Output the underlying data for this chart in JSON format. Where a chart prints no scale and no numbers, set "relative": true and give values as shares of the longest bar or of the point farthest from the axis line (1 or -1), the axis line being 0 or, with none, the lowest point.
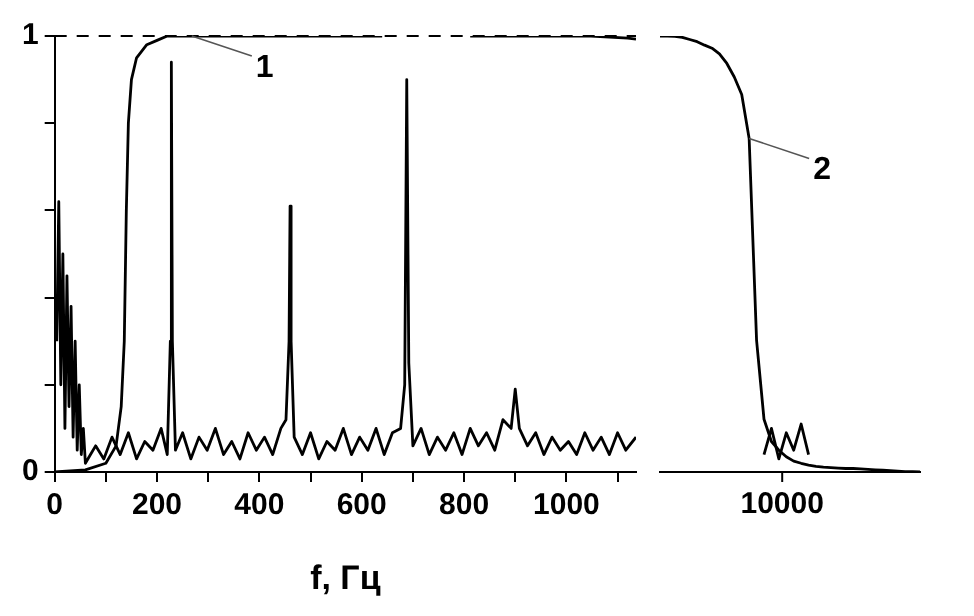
{
  "chart_data": [
    {
      "type": "line",
      "xlabel": "f, Гц",
      "xlim": [
        0,
        1136
      ],
      "ylim": [
        0,
        1
      ],
      "xticks": [
        0,
        {
          "value": 100,
          "label": null
        },
        200,
        {
          "value": 300,
          "label": null
        },
        400,
        {
          "value": 500,
          "label": null
        },
        600,
        {
          "value": 700,
          "label": null
        },
        800,
        {
          "value": 900,
          "label": null
        },
        1000,
        {
          "value": 1100,
          "label": null
        }
      ],
      "yticks": [
        0,
        {
          "value": 0.2,
          "label": null
        },
        {
          "value": 0.4,
          "label": null
        },
        {
          "value": 0.6,
          "label": null
        },
        {
          "value": 0.8,
          "label": null
        },
        1
      ],
      "grid": false,
      "legend": false,
      "marker": "none",
      "line_style": "solid",
      "ref_lines": [
        {
          "axis": "y",
          "value": 1,
          "line_style": "dashed",
          "color": "#000000"
        }
      ],
      "annotations": [
        {
          "text": "1",
          "x": 268,
          "y": 1
        }
      ],
      "series": [
        {
          "color": "#000000",
          "x": [
            4,
            8,
            12,
            16,
            20,
            24,
            28,
            32,
            36,
            40,
            44,
            48,
            52,
            56,
            60,
            70,
            80,
            96,
            112,
            128,
            144,
            160,
            176,
            192,
            208,
            220,
            226,
            228,
            230,
            236,
            250,
            266,
            282,
            298,
            314,
            330,
            346,
            362,
            378,
            394,
            410,
            426,
            442,
            452,
            458,
            460,
            462,
            468,
            484,
            500,
            516,
            532,
            548,
            564,
            580,
            596,
            612,
            628,
            644,
            660,
            676,
            684,
            688,
            692,
            700,
            716,
            732,
            748,
            764,
            780,
            796,
            812,
            828,
            844,
            860,
            876,
            892,
            900,
            908,
            924,
            940,
            956,
            972,
            988,
            1004,
            1020,
            1036,
            1052,
            1068,
            1084,
            1100,
            1116,
            1136
          ],
          "values": [
            0.3,
            0.62,
            0.2,
            0.5,
            0.1,
            0.45,
            0.15,
            0.38,
            0.08,
            0.3,
            0.05,
            0.2,
            0.04,
            0.1,
            0.02,
            0.04,
            0.06,
            0.03,
            0.08,
            0.04,
            0.09,
            0.03,
            0.07,
            0.05,
            0.1,
            0.04,
            0.3,
            0.94,
            0.3,
            0.05,
            0.09,
            0.03,
            0.08,
            0.05,
            0.1,
            0.04,
            0.07,
            0.03,
            0.09,
            0.05,
            0.08,
            0.04,
            0.1,
            0.12,
            0.3,
            0.61,
            0.3,
            0.08,
            0.04,
            0.09,
            0.03,
            0.07,
            0.05,
            0.1,
            0.04,
            0.08,
            0.05,
            0.1,
            0.04,
            0.09,
            0.1,
            0.2,
            0.9,
            0.25,
            0.06,
            0.1,
            0.04,
            0.08,
            0.05,
            0.09,
            0.04,
            0.1,
            0.06,
            0.09,
            0.05,
            0.12,
            0.1,
            0.19,
            0.1,
            0.06,
            0.09,
            0.04,
            0.08,
            0.05,
            0.07,
            0.04,
            0.09,
            0.05,
            0.08,
            0.04,
            0.09,
            0.05,
            0.08
          ]
        },
        {
          "color": "#000000",
          "x": [
            0,
            60,
            100,
            120,
            130,
            136,
            140,
            144,
            150,
            160,
            180,
            200,
            220,
            640,
            644,
            812,
            1048,
            1120,
            1136
          ],
          "values": [
            0,
            0.005,
            0.02,
            0.06,
            0.15,
            0.3,
            0.6,
            0.8,
            0.9,
            0.95,
            0.98,
            0.99,
            1,
            1,
            null,
            1,
            1,
            0.995,
            0.993
          ]
        }
      ]
    },
    {
      "type": "line",
      "categories": [
        null,
        null,
        null,
        null,
        null,
        null,
        null,
        null,
        null,
        null,
        null,
        null,
        null,
        null,
        null,
        null,
        null,
        null,
        null,
        null,
        null,
        null,
        null,
        null,
        null,
        null,
        null,
        null,
        null,
        null,
        null,
        null,
        null,
        null,
        null,
        null
      ],
      "relative": true,
      "grid": false,
      "legend": false,
      "marker": "none",
      "line_style": "solid",
      "annotations": [
        "2",
        "10000"
      ],
      "series": [
        {
          "color": "#000000",
          "values": [
            null,
            null,
            null,
            null,
            null,
            null,
            null,
            null,
            null,
            null,
            null,
            null,
            null,
            null,
            0.04,
            0.1,
            0.03,
            0.09,
            0.05,
            0.11,
            0.04,
            null,
            null,
            null,
            null,
            null,
            null,
            null,
            null,
            null,
            null,
            null,
            null,
            null,
            null,
            null
          ]
        },
        {
          "color": "#000000",
          "values": [
            1,
            1,
            0.999,
            0.997,
            0.992,
            0.987,
            0.979,
            0.972,
            0.959,
            0.937,
            0.906,
            0.866,
            0.765,
            0.302,
            0.121,
            0.07,
            0.05,
            0.035,
            0.025,
            0.02,
            0.016,
            0.013,
            0.011,
            0.01,
            0.009,
            0.008,
            0.008,
            0.007,
            0.006,
            0.005,
            0.004,
            0.003,
            0.002,
            0.001,
            0.001,
            0
          ]
        }
      ]
    }
  ]
}
